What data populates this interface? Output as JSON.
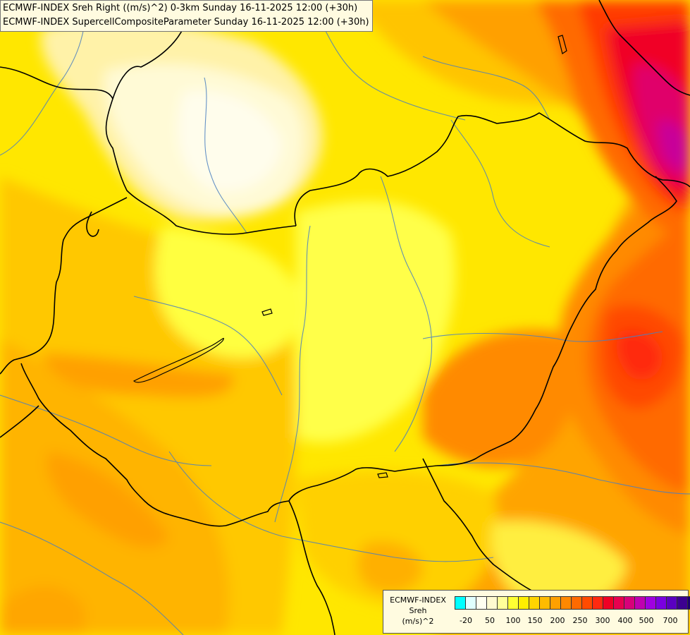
{
  "titles": [
    "ECMWF-INDEX Sreh Right ((m/s)^2) 0-3km Sunday 16-11-2025 12:00 (+30h)",
    "ECMWF-INDEX SupercellCompositeParameter Sunday 16-11-2025 12:00 (+30h)"
  ],
  "legend": {
    "model": "ECMWF-INDEX",
    "variable": "Sreh",
    "unit": "(m/s)^2",
    "colors": [
      "#00ffff",
      "#e0ffff",
      "#fffff0",
      "#fffad0",
      "#ffff99",
      "#ffff33",
      "#ffee00",
      "#ffd400",
      "#ffbb00",
      "#ffa000",
      "#ff8800",
      "#ff6a00",
      "#ff4b00",
      "#ff2a10",
      "#f00025",
      "#e8004f",
      "#d8007a",
      "#c000b0",
      "#a000e0",
      "#7a00e0",
      "#5a00c0",
      "#3c0090",
      "#1c0070"
    ],
    "ticks": [
      "-20",
      "50",
      "100",
      "150",
      "200",
      "250",
      "300",
      "400",
      "500",
      "700"
    ]
  }
}
